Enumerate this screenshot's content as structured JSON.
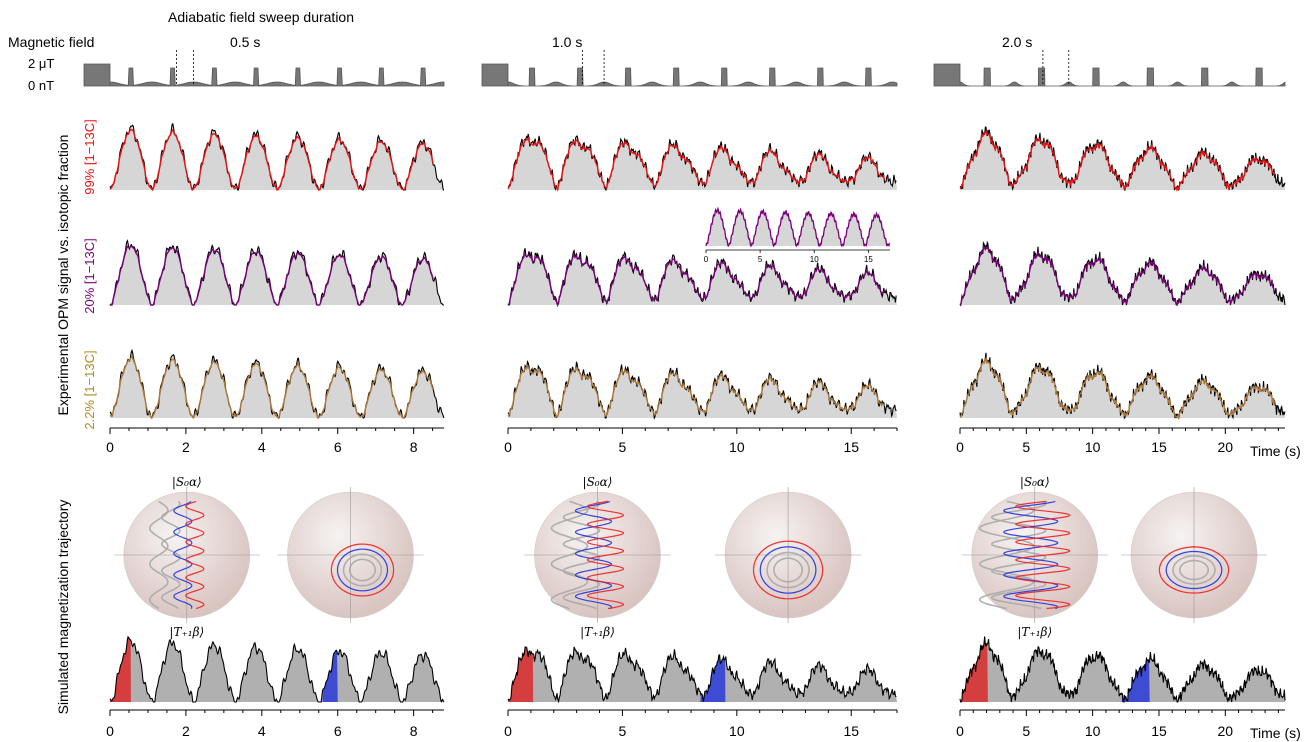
{
  "header": {
    "sweep_label": "Adiabatic field sweep duration",
    "field_label": "Magnetic field",
    "field_high": "2 μT",
    "field_low": "0 nT"
  },
  "y_labels": {
    "experimental": "Experimental OPM signal vs. isotopic fraction",
    "simulated": "Simulated magnetization trajectory"
  },
  "x_axis_unit": "Time (s)",
  "state_labels": {
    "top": "|S₀α⟩",
    "bottom": "|T₊₁β⟩"
  },
  "colors": {
    "measured": "#000000",
    "fit_99": "#ee1111",
    "fit_20": "#7a007a",
    "fit_2": "#b07a3a",
    "fill": "#d6d6d6",
    "sim_fill": "#b0b0b0",
    "highlight_start": "#dd2222",
    "highlight_mid": "#2233dd",
    "pulse_fill": "#777777"
  },
  "chart_data": [
    {
      "type": "line",
      "panel": "0.5 s",
      "sweep_duration_label": "0.5 s",
      "x_range": [
        0,
        8.8
      ],
      "x_ticks": [
        "0",
        "2",
        "4",
        "6",
        "8"
      ],
      "period": 1.1,
      "rows": [
        {
          "label": "99% [1−13C]",
          "series": [
            "Experimental OPM signal",
            "Fit"
          ],
          "amplitude_decay": "slight"
        },
        {
          "label": "20% [1−13C]",
          "series": [
            "Experimental OPM signal",
            "Fit"
          ],
          "amplitude_decay": "slight"
        },
        {
          "label": "2.2% [1−13C]",
          "series": [
            "Experimental OPM signal",
            "Fit"
          ],
          "amplitude_decay": "slight"
        }
      ],
      "simulated": {
        "highlight_red": [
          0,
          0.55
        ],
        "highlight_blue": [
          5.6,
          6.0
        ]
      }
    },
    {
      "type": "line",
      "panel": "1.0 s",
      "sweep_duration_label": "1.0 s",
      "x_range": [
        0,
        17
      ],
      "x_ticks": [
        "0",
        "5",
        "10",
        "15"
      ],
      "period": 2.1,
      "inset": {
        "x_range": [
          0,
          17
        ],
        "x_ticks": [
          "0",
          "5",
          "10",
          "15"
        ]
      },
      "rows": [
        {
          "label": "99% [1−13C]"
        },
        {
          "label": "20% [1−13C]"
        },
        {
          "label": "2.2% [1−13C]"
        }
      ],
      "simulated": {
        "highlight_red": [
          0,
          1.1
        ],
        "highlight_blue": [
          8.4,
          9.5
        ]
      }
    },
    {
      "type": "line",
      "panel": "2.0 s",
      "sweep_duration_label": "2.0 s",
      "x_range": [
        0,
        24.5
      ],
      "x_ticks": [
        "0",
        "5",
        "10",
        "15",
        "20"
      ],
      "period": 4.1,
      "rows": [
        {
          "label": "99% [1−13C]"
        },
        {
          "label": "20% [1−13C]"
        },
        {
          "label": "2.2% [1−13C]"
        }
      ],
      "simulated": {
        "highlight_red": [
          0,
          2.1
        ],
        "highlight_blue": [
          12.2,
          14.3
        ]
      }
    }
  ]
}
